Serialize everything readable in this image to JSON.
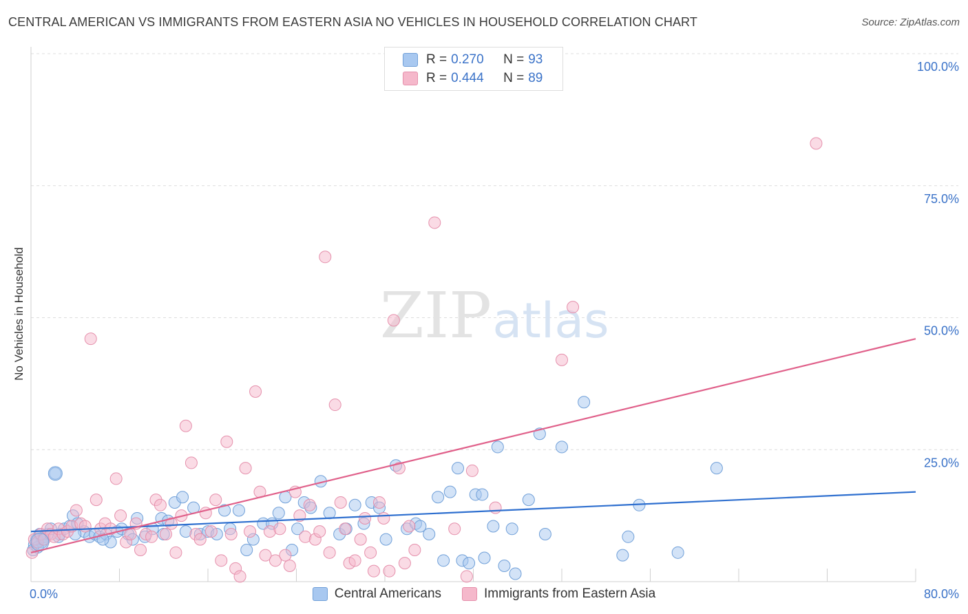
{
  "title": "CENTRAL AMERICAN VS IMMIGRANTS FROM EASTERN ASIA NO VEHICLES IN HOUSEHOLD CORRELATION CHART",
  "source": "Source: ZipAtlas.com",
  "watermark": {
    "zip": "ZIP",
    "atlas": "atlas"
  },
  "legend_top": {
    "rows": [
      {
        "r_label": "R = ",
        "r_value": "0.270",
        "n_label": "N = ",
        "n_value": "93",
        "color": "#a8c8f0"
      },
      {
        "r_label": "R = ",
        "r_value": "0.444",
        "n_label": "N = ",
        "n_value": "89",
        "color": "#f5b8cb"
      }
    ]
  },
  "chart_data": {
    "type": "scatter",
    "ylabel": "No Vehicles in Household",
    "xlim": [
      0,
      80
    ],
    "ylim": [
      0,
      100
    ],
    "x_tick_labels": [
      "0.0%",
      "80.0%"
    ],
    "y_tick_labels": [
      "25.0%",
      "50.0%",
      "75.0%",
      "100.0%"
    ],
    "y_ticks": [
      25,
      50,
      75,
      100
    ],
    "grid": true,
    "legend": "bottom-center",
    "series": [
      {
        "name": "Central Americans",
        "color": "#a8c8f0",
        "stroke": "#6f9fd8",
        "trend_color": "#2e6fcf",
        "trend": [
          [
            0,
            9.5
          ],
          [
            80,
            17.0
          ]
        ],
        "points": [
          [
            0.3,
            7
          ],
          [
            0.5,
            8
          ],
          [
            0.8,
            9
          ],
          [
            1.0,
            7.5
          ],
          [
            1.2,
            8.5
          ],
          [
            1.5,
            9
          ],
          [
            1.8,
            10
          ],
          [
            2.2,
            20.5
          ],
          [
            2.6,
            9
          ],
          [
            3.0,
            10
          ],
          [
            3.5,
            10.5
          ],
          [
            3.8,
            12.5
          ],
          [
            4.2,
            11
          ],
          [
            4.8,
            9.5
          ],
          [
            5.3,
            8.5
          ],
          [
            5.8,
            9
          ],
          [
            6.2,
            8.5
          ],
          [
            6.8,
            9
          ],
          [
            7.2,
            7.5
          ],
          [
            7.8,
            9.5
          ],
          [
            8.2,
            10
          ],
          [
            8.8,
            9
          ],
          [
            9.2,
            8
          ],
          [
            9.6,
            12
          ],
          [
            10.3,
            8.5
          ],
          [
            11.0,
            10
          ],
          [
            11.8,
            12
          ],
          [
            12.4,
            11.5
          ],
          [
            13.0,
            15
          ],
          [
            13.7,
            16
          ],
          [
            14.0,
            9.5
          ],
          [
            14.7,
            14
          ],
          [
            15.3,
            9
          ],
          [
            16.0,
            9.5
          ],
          [
            16.8,
            9
          ],
          [
            17.5,
            13.5
          ],
          [
            18.0,
            10
          ],
          [
            18.8,
            13.5
          ],
          [
            19.5,
            6
          ],
          [
            20.1,
            8
          ],
          [
            21.0,
            11
          ],
          [
            21.8,
            11
          ],
          [
            22.4,
            13
          ],
          [
            23.0,
            16
          ],
          [
            23.6,
            6
          ],
          [
            24.1,
            10
          ],
          [
            24.7,
            15
          ],
          [
            25.3,
            14
          ],
          [
            26.2,
            19
          ],
          [
            27.0,
            13
          ],
          [
            27.9,
            9
          ],
          [
            28.5,
            10
          ],
          [
            29.3,
            14.5
          ],
          [
            30.1,
            11
          ],
          [
            30.8,
            15
          ],
          [
            31.5,
            14
          ],
          [
            32.1,
            8
          ],
          [
            33.0,
            22
          ],
          [
            34.0,
            10
          ],
          [
            34.8,
            11
          ],
          [
            35.2,
            10.5
          ],
          [
            36.0,
            9
          ],
          [
            36.8,
            16
          ],
          [
            37.3,
            4
          ],
          [
            37.9,
            17
          ],
          [
            38.6,
            21.5
          ],
          [
            39.0,
            4
          ],
          [
            39.6,
            3.5
          ],
          [
            40.2,
            16.5
          ],
          [
            40.8,
            16.5
          ],
          [
            41.0,
            4.5
          ],
          [
            41.8,
            10.5
          ],
          [
            42.2,
            25.5
          ],
          [
            42.8,
            3
          ],
          [
            43.5,
            10
          ],
          [
            43.8,
            1.5
          ],
          [
            45.0,
            15.5
          ],
          [
            46.0,
            28
          ],
          [
            46.5,
            9
          ],
          [
            48.0,
            25.5
          ],
          [
            50.0,
            34
          ],
          [
            53.5,
            5
          ],
          [
            54.0,
            8.5
          ],
          [
            55.0,
            14.5
          ],
          [
            58.5,
            5.5
          ],
          [
            62.0,
            21.5
          ],
          [
            0.2,
            6
          ],
          [
            0.6,
            6.5
          ],
          [
            1.1,
            8
          ],
          [
            2.5,
            8.5
          ],
          [
            4.0,
            9
          ],
          [
            6.5,
            8
          ],
          [
            12.0,
            9
          ]
        ]
      },
      {
        "name": "Immigrants from Eastern Asia",
        "color": "#f5b8cb",
        "stroke": "#e58fab",
        "trend_color": "#e0608a",
        "trend": [
          [
            0,
            5.5
          ],
          [
            80,
            46
          ]
        ],
        "points": [
          [
            0.3,
            8
          ],
          [
            0.6,
            7.5
          ],
          [
            0.9,
            9
          ],
          [
            1.2,
            8
          ],
          [
            1.5,
            10
          ],
          [
            1.8,
            9
          ],
          [
            2.1,
            8.5
          ],
          [
            2.5,
            10
          ],
          [
            2.9,
            9
          ],
          [
            3.3,
            9.5
          ],
          [
            3.7,
            10.5
          ],
          [
            4.1,
            13.5
          ],
          [
            4.5,
            11
          ],
          [
            4.9,
            10.5
          ],
          [
            5.4,
            46
          ],
          [
            5.9,
            15.5
          ],
          [
            6.3,
            10
          ],
          [
            6.7,
            11
          ],
          [
            7.2,
            10
          ],
          [
            7.7,
            19.5
          ],
          [
            8.1,
            12.5
          ],
          [
            8.6,
            7.5
          ],
          [
            9.0,
            9
          ],
          [
            9.5,
            11
          ],
          [
            9.9,
            6
          ],
          [
            10.4,
            9
          ],
          [
            10.9,
            8.5
          ],
          [
            11.3,
            15.5
          ],
          [
            11.7,
            14.5
          ],
          [
            12.2,
            9
          ],
          [
            12.7,
            11
          ],
          [
            13.1,
            5.5
          ],
          [
            13.6,
            12.5
          ],
          [
            14.0,
            29.5
          ],
          [
            14.5,
            22.5
          ],
          [
            14.9,
            9
          ],
          [
            15.3,
            8
          ],
          [
            15.8,
            13
          ],
          [
            16.3,
            9.5
          ],
          [
            16.7,
            15.5
          ],
          [
            17.2,
            4
          ],
          [
            17.7,
            26.5
          ],
          [
            18.1,
            9
          ],
          [
            18.5,
            2.5
          ],
          [
            18.9,
            1
          ],
          [
            19.4,
            21.5
          ],
          [
            19.8,
            9.5
          ],
          [
            20.3,
            36
          ],
          [
            20.7,
            17
          ],
          [
            21.2,
            5
          ],
          [
            21.6,
            9.5
          ],
          [
            22.1,
            4
          ],
          [
            22.5,
            10
          ],
          [
            23.0,
            5
          ],
          [
            23.4,
            3
          ],
          [
            23.9,
            17
          ],
          [
            24.3,
            12.5
          ],
          [
            24.8,
            8.5
          ],
          [
            25.2,
            14.5
          ],
          [
            25.7,
            8
          ],
          [
            26.1,
            9.5
          ],
          [
            26.6,
            61.5
          ],
          [
            27.0,
            5.5
          ],
          [
            27.5,
            33.5
          ],
          [
            28.0,
            15
          ],
          [
            28.4,
            10
          ],
          [
            28.8,
            3.5
          ],
          [
            29.3,
            4
          ],
          [
            29.8,
            8
          ],
          [
            30.2,
            12
          ],
          [
            30.7,
            5.5
          ],
          [
            31.0,
            2
          ],
          [
            31.5,
            15
          ],
          [
            31.9,
            12
          ],
          [
            32.4,
            2
          ],
          [
            32.8,
            49.5
          ],
          [
            33.3,
            21.5
          ],
          [
            33.8,
            3.5
          ],
          [
            34.2,
            10.5
          ],
          [
            34.7,
            6
          ],
          [
            36.5,
            68
          ],
          [
            38.3,
            10
          ],
          [
            39.4,
            1
          ],
          [
            39.9,
            21
          ],
          [
            42.0,
            14
          ],
          [
            48.0,
            42
          ],
          [
            49.0,
            52
          ],
          [
            71.0,
            83
          ],
          [
            0.1,
            5.5
          ]
        ]
      }
    ]
  }
}
